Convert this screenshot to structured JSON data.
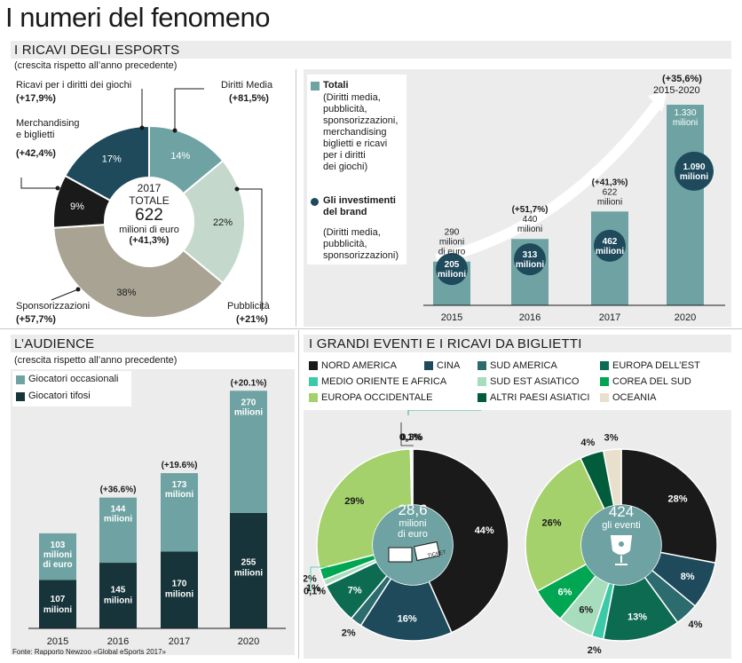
{
  "header": {
    "title": "I numeri del fenomeno"
  },
  "revenue": {
    "title": "I RICAVI DEGLI ESPORTS",
    "subtitle": "(crescita rispetto all’anno precedente)",
    "center": {
      "year": "2017",
      "label": "TOTALE",
      "value": "622",
      "unit": "milioni di euro",
      "growth": "(+41,3%)"
    },
    "labels": {
      "rights": "Ricavi per i diritti dei giochi",
      "rights_growth": "(+17,9%)",
      "merch": "Merchandising",
      "merch2": "e biglietti",
      "merch_growth": "(+42,4%)",
      "media": "Diritti Media",
      "media_growth": "(+81,5%)",
      "ads": "Pubblicità",
      "ads_growth": "(+21%)",
      "spons": "Sponsorizzazioni",
      "spons_growth": "(+57,7%)"
    }
  },
  "revenue_bars": {
    "legend": {
      "totali_title": "Totali",
      "totali_desc": [
        "(Diritti media,",
        "pubblicità,",
        "sponsorizzazioni,",
        "merchandising",
        "biglietti e ricavi",
        "per i diritti",
        "dei giochi)"
      ],
      "brand_title": [
        "Gli investimenti",
        "del brand"
      ],
      "brand_desc": [
        "(Diritti media,",
        "pubblicità,",
        "sponsorizzazioni)"
      ]
    },
    "top_growth": "(+35,6%)",
    "top_period": "2015-2020",
    "growth_labels": [
      "",
      "(+51,7%)",
      "(+41,3%)",
      ""
    ],
    "total_labels": [
      [
        "290",
        "milioni",
        "di euro"
      ],
      [
        "440",
        "milioni"
      ],
      [
        "622",
        "milioni"
      ],
      [
        "1.330",
        "milioni"
      ]
    ],
    "brand_labels": [
      [
        "205",
        "milioni"
      ],
      [
        "313",
        "milioni"
      ],
      [
        "462",
        "milioni"
      ],
      [
        "1.090",
        "milioni"
      ]
    ]
  },
  "audience": {
    "title": "L’AUDIENCE",
    "subtitle": "(crescita rispetto all’anno precedente)",
    "legend": {
      "casual": "Giocatori occasionali",
      "fans": "Giocatori tifosi"
    },
    "growth_labels": [
      "",
      "(+36.6%)",
      "(+19.6%)",
      "(+20.1%)"
    ],
    "casual_labels": [
      [
        "103",
        "milioni",
        "di euro"
      ],
      [
        "144",
        "milioni"
      ],
      [
        "173",
        "milioni"
      ],
      [
        "270",
        "milioni"
      ]
    ],
    "fans_labels": [
      [
        "107",
        "milioni"
      ],
      [
        "145",
        "milioni"
      ],
      [
        "170",
        "milioni"
      ],
      [
        "255",
        "milioni"
      ]
    ]
  },
  "events": {
    "title": "I GRANDI EVENTI E I RICAVI DA BIGLIETTI",
    "legend": [
      "NORD AMERICA",
      "CINA",
      "SUD AMERICA",
      "EUROPA DELL’EST",
      "MEDIO ORIENTE E AFRICA",
      "SUD EST ASIATICO",
      "COREA DEL SUD",
      "EUROPA OCCIDENTALE",
      "ALTRI PAESI ASIATICI",
      "OCEANIA"
    ],
    "donut1_center": [
      "28,6",
      "milioni",
      "di euro"
    ],
    "donut1_ticket": "TICKET",
    "donut2_center": [
      "424",
      "gli eventi"
    ]
  },
  "source": "Fonte: Rapporto Newzoo «Global eSports 2017»",
  "colors": {
    "teal": "#6fa3a3",
    "navy": "#1e4a5c",
    "black": "#1a1a1a",
    "taupe": "#a8a392",
    "sage": "#c4d9cc",
    "dark": "#16343a",
    "lime": "#a4d16b",
    "grey_band": "#ececec"
  },
  "chart_data": [
    {
      "type": "pie",
      "title": "I RICAVI DEGLI ESPORTS",
      "categories": [
        "Diritti Media",
        "Pubblicità",
        "Sponsorizzazioni",
        "Merchandising e biglietti",
        "Ricavi per i diritti dei giochi"
      ],
      "values": [
        14,
        22,
        38,
        9,
        17
      ],
      "value_labels": [
        "14%",
        "22%",
        "38%",
        "9%",
        "17%"
      ],
      "growth": [
        "(+81,5%)",
        "(+21%)",
        "(+57,7%)",
        "(+42,4%)",
        "(+17,9%)"
      ],
      "colors": [
        "#6fa3a3",
        "#c4d9cc",
        "#a8a392",
        "#1a1a1a",
        "#1e4a5c"
      ]
    },
    {
      "type": "bar",
      "categories": [
        "2015",
        "2016",
        "2017",
        "2020"
      ],
      "series": [
        {
          "name": "Totali",
          "values": [
            290,
            440,
            622,
            1330
          ]
        },
        {
          "name": "Gli investimenti del brand",
          "values": [
            205,
            313,
            462,
            1090
          ]
        }
      ],
      "ylim": [
        0,
        1330
      ]
    },
    {
      "type": "bar",
      "title": "L’AUDIENCE",
      "categories": [
        "2015",
        "2016",
        "2017",
        "2020"
      ],
      "series": [
        {
          "name": "Giocatori tifosi",
          "values": [
            107,
            145,
            170,
            255
          ]
        },
        {
          "name": "Giocatori occasionali",
          "values": [
            103,
            144,
            173,
            270
          ]
        }
      ],
      "stacked": true
    },
    {
      "type": "pie",
      "categories": [
        "NORD AMERICA",
        "CINA",
        "SUD AMERICA",
        "EUROPA DELL’EST",
        "MEDIO ORIENTE E AFRICA",
        "SUD EST ASIATICO",
        "COREA DEL SUD",
        "EUROPA OCCIDENTALE",
        "ALTRI PAESI ASIATICI",
        "OCEANIA"
      ],
      "values": [
        44,
        16,
        2,
        7,
        0.1,
        1,
        2,
        29,
        0.1,
        0.3
      ],
      "value_labels": [
        "44%",
        "16%",
        "2%",
        "7%",
        "0,1%",
        "1%",
        "2%",
        "29%",
        "0,1%",
        "0,3%"
      ]
    },
    {
      "type": "pie",
      "categories": [
        "NORD AMERICA",
        "CINA",
        "SUD AMERICA",
        "EUROPA DELL’EST",
        "MEDIO ORIENTE E AFRICA",
        "SUD EST ASIATICO",
        "COREA DEL SUD",
        "EUROPA OCCIDENTALE",
        "ALTRI PAESI ASIATICI",
        "OCEANIA"
      ],
      "values": [
        28,
        8,
        4,
        13,
        2,
        6,
        6,
        26,
        4,
        3
      ],
      "value_labels": [
        "28%",
        "8%",
        "4%",
        "13%",
        "2%",
        "6%",
        "6%",
        "26%",
        "4%",
        "3%"
      ]
    }
  ]
}
